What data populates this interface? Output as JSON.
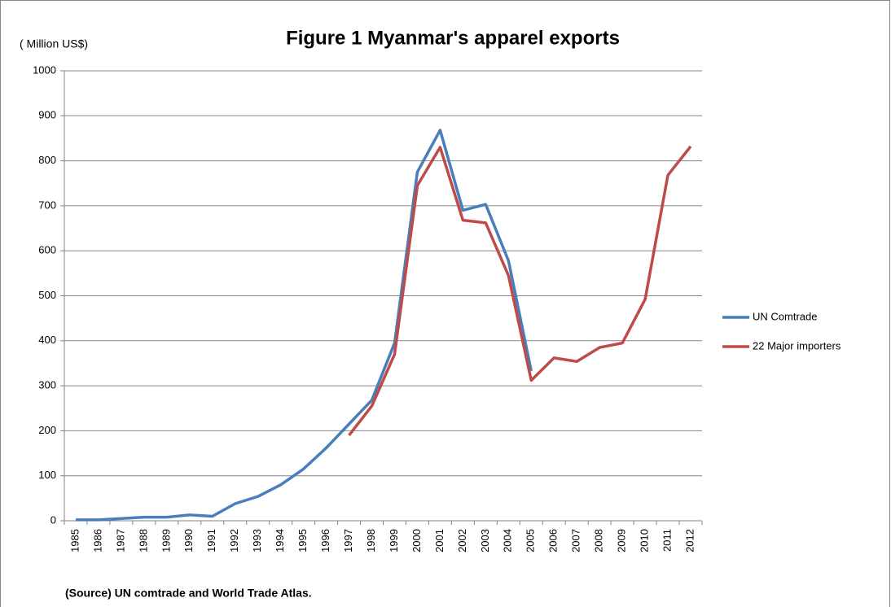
{
  "chart_data": {
    "type": "line",
    "title": "Figure 1 Myanmar's apparel exports",
    "y_label": "( Million US$)",
    "note": "(Source) UN comtrade and World Trade Atlas.",
    "categories": [
      "1985",
      "1986",
      "1987",
      "1988",
      "1989",
      "1990",
      "1991",
      "1992",
      "1993",
      "1994",
      "1995",
      "1996",
      "1997",
      "1998",
      "1999",
      "2000",
      "2001",
      "2002",
      "2003",
      "2004",
      "2005",
      "2006",
      "2007",
      "2008",
      "2009",
      "2010",
      "2011",
      "2012"
    ],
    "series": [
      {
        "name": "UN Comtrade",
        "color": "#4a7ebb",
        "values": [
          2,
          2,
          5,
          8,
          8,
          13,
          10,
          38,
          54,
          80,
          115,
          162,
          215,
          268,
          395,
          775,
          868,
          690,
          703,
          578,
          333,
          null,
          null,
          null,
          null,
          null,
          null,
          null
        ]
      },
      {
        "name": "22 Major importers",
        "color": "#be4b48",
        "values": [
          null,
          null,
          null,
          null,
          null,
          null,
          null,
          null,
          null,
          null,
          null,
          null,
          190,
          255,
          370,
          745,
          830,
          668,
          662,
          545,
          312,
          362,
          354,
          385,
          395,
          492,
          768,
          832
        ]
      }
    ],
    "ylim": [
      0,
      1000
    ],
    "yticks": [
      0,
      100,
      200,
      300,
      400,
      500,
      600,
      700,
      800,
      900,
      1000
    ],
    "grid": true,
    "legend": "right"
  }
}
